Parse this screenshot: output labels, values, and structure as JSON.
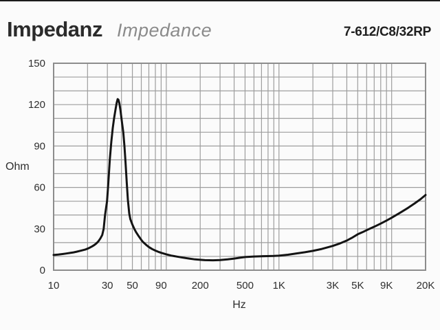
{
  "header": {
    "title_de": "Impedanz",
    "title_en": "Impedance",
    "model": "7-612/C8/32RP"
  },
  "chart_data": {
    "type": "line",
    "title": "Impedanz / Impedance",
    "xlabel": "Hz",
    "ylabel": "Ohm",
    "x_scale": "log",
    "x_range": [
      10,
      20000
    ],
    "y_range": [
      0,
      150
    ],
    "y_major_ticks": [
      0,
      30,
      60,
      90,
      120,
      150
    ],
    "y_minor_step": 10,
    "x_ticks": [
      {
        "label": "10",
        "value": 10
      },
      {
        "label": "30",
        "value": 30
      },
      {
        "label": "50",
        "value": 50
      },
      {
        "label": "90",
        "value": 90
      },
      {
        "label": "200",
        "value": 200
      },
      {
        "label": "500",
        "value": 500
      },
      {
        "label": "1K",
        "value": 1000
      },
      {
        "label": "3K",
        "value": 3000
      },
      {
        "label": "5K",
        "value": 5000
      },
      {
        "label": "9K",
        "value": 9000
      },
      {
        "label": "20K",
        "value": 20000
      }
    ],
    "x_gridlines": [
      10,
      20,
      30,
      40,
      50,
      60,
      70,
      80,
      90,
      100,
      200,
      300,
      400,
      500,
      600,
      700,
      800,
      900,
      1000,
      2000,
      3000,
      4000,
      5000,
      6000,
      7000,
      8000,
      9000,
      10000,
      20000
    ],
    "grid": true,
    "legend": false,
    "colors": {
      "curve": "#141414",
      "grid": "#9d9d9d",
      "frame": "#8c8c8c",
      "text": "#2e2e2e",
      "accent_title": "#2b2b2b",
      "subtitle": "#8b8b8b"
    },
    "series": [
      {
        "name": "Impedance",
        "points": [
          [
            10,
            11
          ],
          [
            11,
            11.3
          ],
          [
            12,
            11.7
          ],
          [
            13,
            12.1
          ],
          [
            14,
            12.5
          ],
          [
            15,
            12.9
          ],
          [
            16,
            13.4
          ],
          [
            17,
            13.9
          ],
          [
            18,
            14.4
          ],
          [
            19,
            14.9
          ],
          [
            20,
            15.6
          ],
          [
            21,
            16.4
          ],
          [
            22,
            17.3
          ],
          [
            23,
            18.3
          ],
          [
            24,
            19.5
          ],
          [
            25,
            21
          ],
          [
            26,
            23
          ],
          [
            27,
            25.5
          ],
          [
            27.8,
            30
          ],
          [
            28.6,
            40
          ],
          [
            29.8,
            50
          ],
          [
            30.5,
            62
          ],
          [
            31.5,
            80
          ],
          [
            32.5,
            93
          ],
          [
            33.5,
            103
          ],
          [
            34.4,
            110
          ],
          [
            35.5,
            117
          ],
          [
            36.3,
            121.5
          ],
          [
            37,
            124
          ],
          [
            37.6,
            123.5
          ],
          [
            38.3,
            121
          ],
          [
            39.2,
            116
          ],
          [
            40.3,
            108
          ],
          [
            41.5,
            100
          ],
          [
            42.5,
            90
          ],
          [
            43.5,
            78
          ],
          [
            44.5,
            64
          ],
          [
            45.6,
            51
          ],
          [
            46.9,
            41
          ],
          [
            48,
            37
          ],
          [
            50,
            33
          ],
          [
            52,
            30
          ],
          [
            54,
            27.5
          ],
          [
            57,
            24.5
          ],
          [
            60,
            22
          ],
          [
            62,
            20.5
          ],
          [
            66,
            18.5
          ],
          [
            70,
            16.8
          ],
          [
            75,
            15.3
          ],
          [
            80,
            14.2
          ],
          [
            85,
            13.3
          ],
          [
            90,
            12.6
          ],
          [
            100,
            11.5
          ],
          [
            110,
            10.6
          ],
          [
            125,
            9.8
          ],
          [
            140,
            9.1
          ],
          [
            160,
            8.4
          ],
          [
            180,
            7.8
          ],
          [
            200,
            7.5
          ],
          [
            220,
            7.3
          ],
          [
            260,
            7.2
          ],
          [
            300,
            7.4
          ],
          [
            350,
            7.8
          ],
          [
            400,
            8.4
          ],
          [
            450,
            9
          ],
          [
            500,
            9.5
          ],
          [
            600,
            9.9
          ],
          [
            700,
            10.1
          ],
          [
            800,
            10.2
          ],
          [
            900,
            10.3
          ],
          [
            1000,
            10.5
          ],
          [
            1200,
            11.2
          ],
          [
            1400,
            12
          ],
          [
            1700,
            13
          ],
          [
            2000,
            14
          ],
          [
            2400,
            15.4
          ],
          [
            2800,
            16.9
          ],
          [
            3000,
            17.6
          ],
          [
            3500,
            19.5
          ],
          [
            4000,
            21.5
          ],
          [
            4500,
            23.7
          ],
          [
            5000,
            26
          ],
          [
            5500,
            27.5
          ],
          [
            6000,
            29
          ],
          [
            7000,
            31.5
          ],
          [
            8000,
            33.8
          ],
          [
            9000,
            36
          ],
          [
            10000,
            38
          ],
          [
            12000,
            41.8
          ],
          [
            14000,
            45.2
          ],
          [
            16000,
            48.4
          ],
          [
            18000,
            51.4
          ],
          [
            20000,
            54.5
          ]
        ]
      }
    ]
  }
}
